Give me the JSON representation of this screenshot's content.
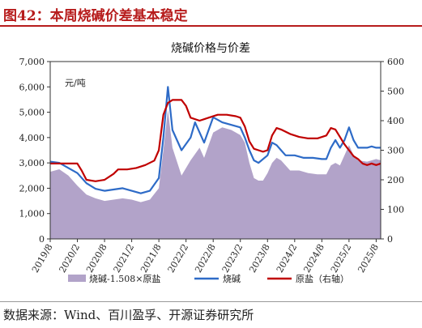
{
  "figure": {
    "heading": "图42：本周烧碱价差基本稳定",
    "source": "数据来源：Wind、百川盈孚、开源证券研究所"
  },
  "colors": {
    "area": "#b2a3c9",
    "caustic": "#2e6bc7",
    "salt": "#c00000"
  },
  "chart_data": {
    "type": "combo",
    "title": "烧碱价格与价差",
    "unit_label": "元/吨",
    "left_axis": {
      "ylim": [
        0,
        7000
      ],
      "ticks": [
        "0",
        "1,000",
        "2,000",
        "3,000",
        "4,000",
        "5,000",
        "6,000",
        "7,000"
      ]
    },
    "right_axis": {
      "ylim": [
        0,
        600
      ],
      "ticks": [
        "0",
        "100",
        "200",
        "300",
        "400",
        "500",
        "600"
      ]
    },
    "x_ticks": [
      "2019/8",
      "2020/2",
      "2020/8",
      "2021/2",
      "2021/8",
      "2022/2",
      "2022/8",
      "2023/2",
      "2023/8",
      "2024/2",
      "2024/8",
      "2025/2",
      "2025/8"
    ],
    "x_range": [
      0,
      73
    ],
    "x_tick_months": [
      0,
      6,
      12,
      18,
      24,
      30,
      36,
      42,
      48,
      54,
      60,
      66,
      72
    ],
    "series": [
      {
        "name": "烧碱-1.508×原盐",
        "axis": "left",
        "kind": "area",
        "points": [
          [
            0,
            2650
          ],
          [
            2,
            2750
          ],
          [
            4,
            2500
          ],
          [
            6,
            2100
          ],
          [
            8,
            1750
          ],
          [
            10,
            1600
          ],
          [
            12,
            1500
          ],
          [
            14,
            1550
          ],
          [
            16,
            1600
          ],
          [
            18,
            1550
          ],
          [
            20,
            1450
          ],
          [
            22,
            1550
          ],
          [
            24,
            2000
          ],
          [
            25,
            3500
          ],
          [
            26,
            5100
          ],
          [
            27,
            3600
          ],
          [
            29,
            2500
          ],
          [
            31,
            3100
          ],
          [
            33,
            3600
          ],
          [
            34,
            3200
          ],
          [
            36,
            4200
          ],
          [
            38,
            4400
          ],
          [
            40,
            4300
          ],
          [
            42,
            4100
          ],
          [
            43,
            3800
          ],
          [
            44,
            3000
          ],
          [
            45,
            2400
          ],
          [
            46,
            2300
          ],
          [
            47,
            2300
          ],
          [
            48,
            2600
          ],
          [
            49,
            3000
          ],
          [
            50,
            3200
          ],
          [
            51,
            3100
          ],
          [
            52,
            2900
          ],
          [
            53,
            2700
          ],
          [
            55,
            2700
          ],
          [
            57,
            2600
          ],
          [
            59,
            2550
          ],
          [
            61,
            2550
          ],
          [
            62,
            2900
          ],
          [
            63,
            3000
          ],
          [
            64,
            2900
          ],
          [
            65,
            3300
          ],
          [
            66,
            3700
          ],
          [
            67,
            3300
          ],
          [
            68,
            3100
          ],
          [
            70,
            3050
          ],
          [
            71,
            3100
          ],
          [
            72,
            3150
          ],
          [
            73,
            3100
          ]
        ]
      },
      {
        "name": "烧碱",
        "axis": "left",
        "kind": "line",
        "points": [
          [
            0,
            3050
          ],
          [
            2,
            3000
          ],
          [
            4,
            2800
          ],
          [
            6,
            2600
          ],
          [
            8,
            2200
          ],
          [
            10,
            1980
          ],
          [
            12,
            1900
          ],
          [
            14,
            1950
          ],
          [
            16,
            2000
          ],
          [
            18,
            1900
          ],
          [
            20,
            1800
          ],
          [
            22,
            1900
          ],
          [
            24,
            2400
          ],
          [
            25,
            4000
          ],
          [
            26,
            6000
          ],
          [
            27,
            4300
          ],
          [
            29,
            3500
          ],
          [
            31,
            4000
          ],
          [
            32,
            4600
          ],
          [
            34,
            3800
          ],
          [
            36,
            4800
          ],
          [
            38,
            4600
          ],
          [
            40,
            4500
          ],
          [
            42,
            4400
          ],
          [
            43,
            4000
          ],
          [
            44,
            3500
          ],
          [
            45,
            3100
          ],
          [
            46,
            3000
          ],
          [
            48,
            3300
          ],
          [
            49,
            3800
          ],
          [
            50,
            3700
          ],
          [
            51,
            3500
          ],
          [
            52,
            3300
          ],
          [
            54,
            3300
          ],
          [
            56,
            3200
          ],
          [
            58,
            3200
          ],
          [
            60,
            3150
          ],
          [
            61,
            3150
          ],
          [
            62,
            3600
          ],
          [
            63,
            3900
          ],
          [
            64,
            3600
          ],
          [
            65,
            3900
          ],
          [
            66,
            4400
          ],
          [
            67,
            3900
          ],
          [
            68,
            3600
          ],
          [
            70,
            3600
          ],
          [
            71,
            3650
          ],
          [
            72,
            3600
          ],
          [
            73,
            3600
          ]
        ]
      },
      {
        "name": "原盐（右轴）",
        "axis": "right",
        "kind": "line",
        "points": [
          [
            0,
            255
          ],
          [
            2,
            255
          ],
          [
            4,
            255
          ],
          [
            6,
            255
          ],
          [
            7,
            230
          ],
          [
            8,
            200
          ],
          [
            10,
            195
          ],
          [
            12,
            200
          ],
          [
            14,
            220
          ],
          [
            15,
            235
          ],
          [
            17,
            235
          ],
          [
            19,
            240
          ],
          [
            21,
            250
          ],
          [
            23,
            265
          ],
          [
            24,
            300
          ],
          [
            25,
            420
          ],
          [
            26,
            460
          ],
          [
            27,
            470
          ],
          [
            29,
            470
          ],
          [
            30,
            450
          ],
          [
            31,
            410
          ],
          [
            33,
            400
          ],
          [
            35,
            410
          ],
          [
            37,
            420
          ],
          [
            39,
            420
          ],
          [
            41,
            415
          ],
          [
            42,
            410
          ],
          [
            43,
            380
          ],
          [
            44,
            330
          ],
          [
            45,
            305
          ],
          [
            46,
            300
          ],
          [
            47,
            295
          ],
          [
            48,
            300
          ],
          [
            49,
            350
          ],
          [
            50,
            375
          ],
          [
            51,
            370
          ],
          [
            53,
            355
          ],
          [
            55,
            345
          ],
          [
            57,
            340
          ],
          [
            59,
            340
          ],
          [
            61,
            350
          ],
          [
            62,
            375
          ],
          [
            63,
            370
          ],
          [
            64,
            345
          ],
          [
            65,
            320
          ],
          [
            66,
            300
          ],
          [
            67,
            280
          ],
          [
            68,
            270
          ],
          [
            69,
            255
          ],
          [
            70,
            250
          ],
          [
            71,
            255
          ],
          [
            72,
            250
          ],
          [
            73,
            255
          ]
        ]
      }
    ],
    "legend": {
      "position": "bottom",
      "entries": [
        "烧碱-1.508×原盐",
        "烧碱",
        "原盐（右轴）"
      ]
    }
  }
}
